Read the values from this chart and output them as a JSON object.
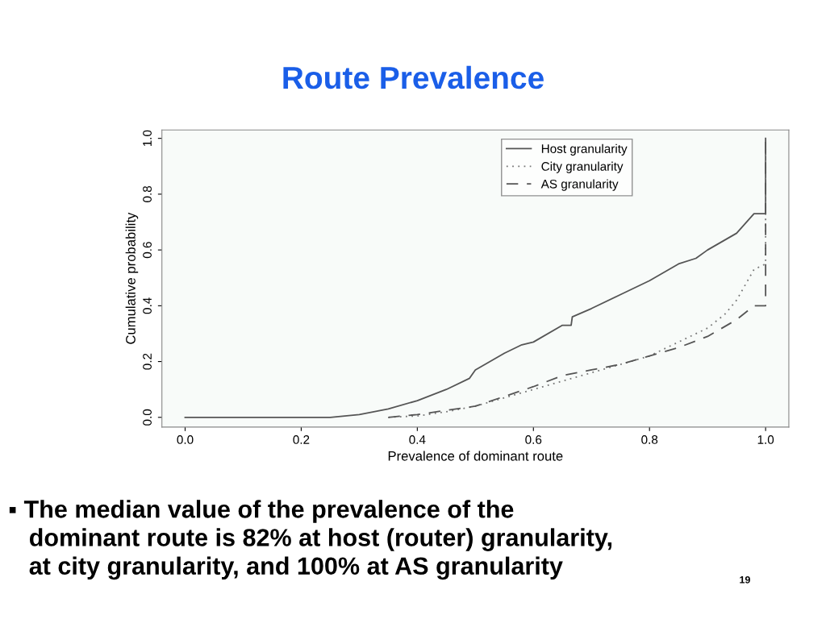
{
  "chart_data": {
    "type": "line",
    "title": "Route Prevalence",
    "xlabel": "Prevalence of dominant route",
    "ylabel": "Cumulative probability",
    "xlim": [
      -0.04,
      1.04
    ],
    "ylim": [
      -0.035,
      1.03
    ],
    "xticks": [
      {
        "value": 0,
        "label": "0.0"
      },
      0.2,
      0.4,
      0.6,
      0.8,
      {
        "value": 1,
        "label": "1.0"
      }
    ],
    "yticks": [
      {
        "value": 0,
        "label": "0.0"
      },
      0.2,
      0.4,
      0.6,
      0.8,
      {
        "value": 1,
        "label": "1.0"
      }
    ],
    "grid": false,
    "legend": "top right",
    "marker": "none",
    "series": [
      {
        "name": "Host granularity",
        "color": "#555555",
        "line_style": "solid",
        "x": [
          0,
          0.25,
          0.3,
          0.35,
          0.4,
          0.45,
          0.49,
          0.5,
          0.55,
          0.58,
          0.6,
          0.65,
          0.665,
          0.667,
          0.7,
          0.75,
          0.8,
          0.85,
          0.88,
          0.9,
          0.95,
          0.98,
          1.0,
          1.0
        ],
        "values": [
          0,
          0,
          0.01,
          0.03,
          0.06,
          0.1,
          0.14,
          0.17,
          0.23,
          0.26,
          0.27,
          0.33,
          0.33,
          0.36,
          0.39,
          0.44,
          0.49,
          0.55,
          0.57,
          0.6,
          0.66,
          0.73,
          0.73,
          1.0
        ]
      },
      {
        "name": "City granularity",
        "color": "#777777",
        "line_style": "dotted",
        "x": [
          0.35,
          0.4,
          0.45,
          0.5,
          0.55,
          0.6,
          0.65,
          0.7,
          0.75,
          0.8,
          0.85,
          0.9,
          0.93,
          0.95,
          0.98,
          1.0,
          1.0
        ],
        "values": [
          0,
          0.005,
          0.02,
          0.04,
          0.07,
          0.1,
          0.13,
          0.16,
          0.19,
          0.22,
          0.27,
          0.32,
          0.37,
          0.42,
          0.53,
          0.55,
          1.0
        ]
      },
      {
        "name": "AS granularity",
        "color": "#555555",
        "line_style": "dashed",
        "x": [
          0.35,
          0.4,
          0.5,
          0.6,
          0.65,
          0.7,
          0.75,
          0.8,
          0.85,
          0.9,
          0.95,
          0.98,
          1.0,
          1.0
        ],
        "values": [
          0,
          0.01,
          0.04,
          0.11,
          0.15,
          0.17,
          0.19,
          0.22,
          0.25,
          0.29,
          0.35,
          0.4,
          0.4,
          1.0
        ]
      }
    ],
    "annotations": [
      "▪ The median value of the prevalence of the\n   dominant route is 82% at host (router) granularity,\n   at city granularity, and 100% at AS granularity",
      "19"
    ]
  }
}
